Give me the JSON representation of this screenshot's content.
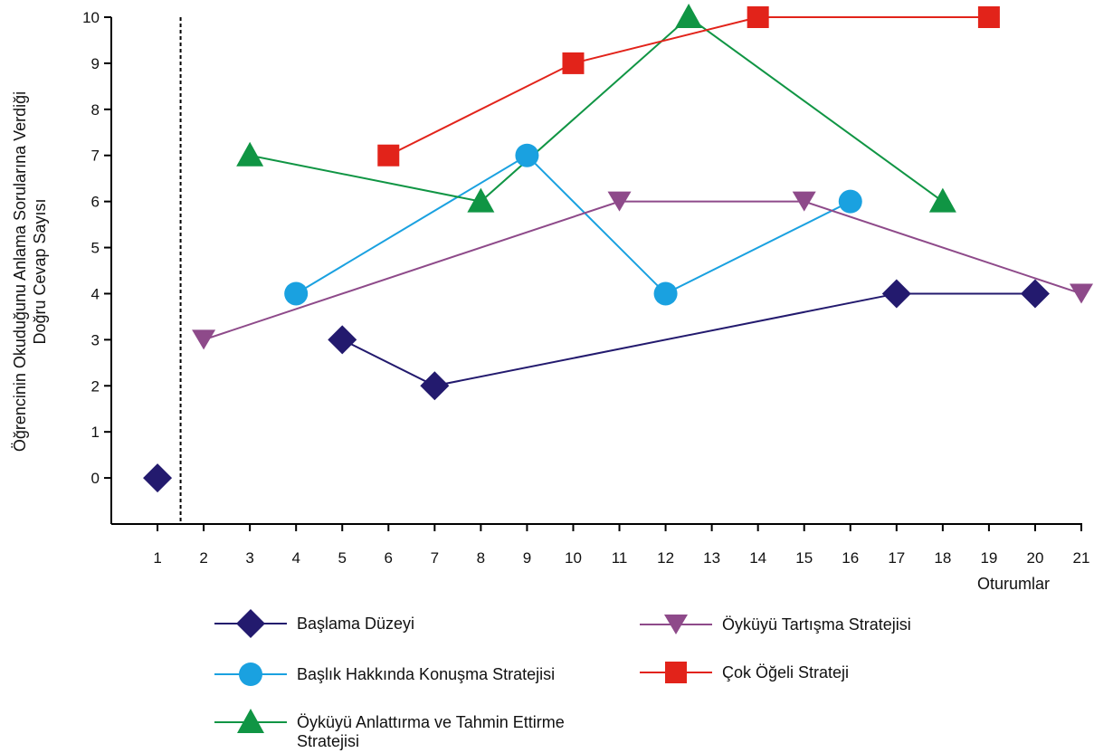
{
  "chart_data": {
    "type": "line",
    "xlabel": "Oturumlar",
    "ylabel_lines": [
      "Öğrencinin Okuduğunu Anlama Sorularına Verdiği",
      "Doğru Cevap Sayısı"
    ],
    "x_ticks": [
      "1",
      "2",
      "3",
      "4",
      "5",
      "6",
      "7",
      "8",
      "9",
      "10",
      "11",
      "12",
      "13",
      "14",
      "15",
      "16",
      "17",
      "18",
      "19",
      "20",
      "21"
    ],
    "y_ticks": [
      "0",
      "1",
      "2",
      "3",
      "4",
      "5",
      "6",
      "7",
      "8",
      "9",
      "10"
    ],
    "xlim": [
      0,
      21
    ],
    "ylim": [
      -1,
      10
    ],
    "phase_divider_x": 1.5,
    "grid": false,
    "legend_placement": "bottom",
    "series": [
      {
        "name": "Başlama Düzeyi",
        "color": "#231a6e",
        "marker": "diamond",
        "segments": [
          [
            [
              1,
              0
            ]
          ],
          [
            [
              5,
              3
            ],
            [
              7,
              2
            ],
            [
              17,
              4
            ],
            [
              20,
              4
            ]
          ]
        ]
      },
      {
        "name": "Başlık Hakkında Konuşma Stratejisi",
        "color": "#1aa1e0",
        "marker": "circle",
        "segments": [
          [
            [
              4,
              4
            ],
            [
              9,
              7
            ],
            [
              12,
              4
            ],
            [
              16,
              6
            ]
          ]
        ]
      },
      {
        "name": "Öyküyü Anlattırma ve Tahmin Ettirme Stratejisi",
        "legend_lines": [
          "Öyküyü Anlattırma ve Tahmin Ettirme",
          "Stratejisi"
        ],
        "color": "#109544",
        "marker": "triangle-up",
        "segments": [
          [
            [
              3,
              7
            ],
            [
              8,
              6
            ],
            [
              12.5,
              10
            ],
            [
              18,
              6
            ]
          ]
        ]
      },
      {
        "name": "Öyküyü Tartışma Stratejisi",
        "color": "#8e4a8a",
        "marker": "triangle-down",
        "segments": [
          [
            [
              2,
              3
            ],
            [
              11,
              6
            ],
            [
              15,
              6
            ],
            [
              21,
              4
            ]
          ]
        ]
      },
      {
        "name": "Çok Öğeli Strateji",
        "color": "#e2231a",
        "marker": "square",
        "segments": [
          [
            [
              6,
              7
            ],
            [
              10,
              9
            ],
            [
              14,
              10
            ],
            [
              19,
              10
            ]
          ]
        ]
      }
    ]
  }
}
